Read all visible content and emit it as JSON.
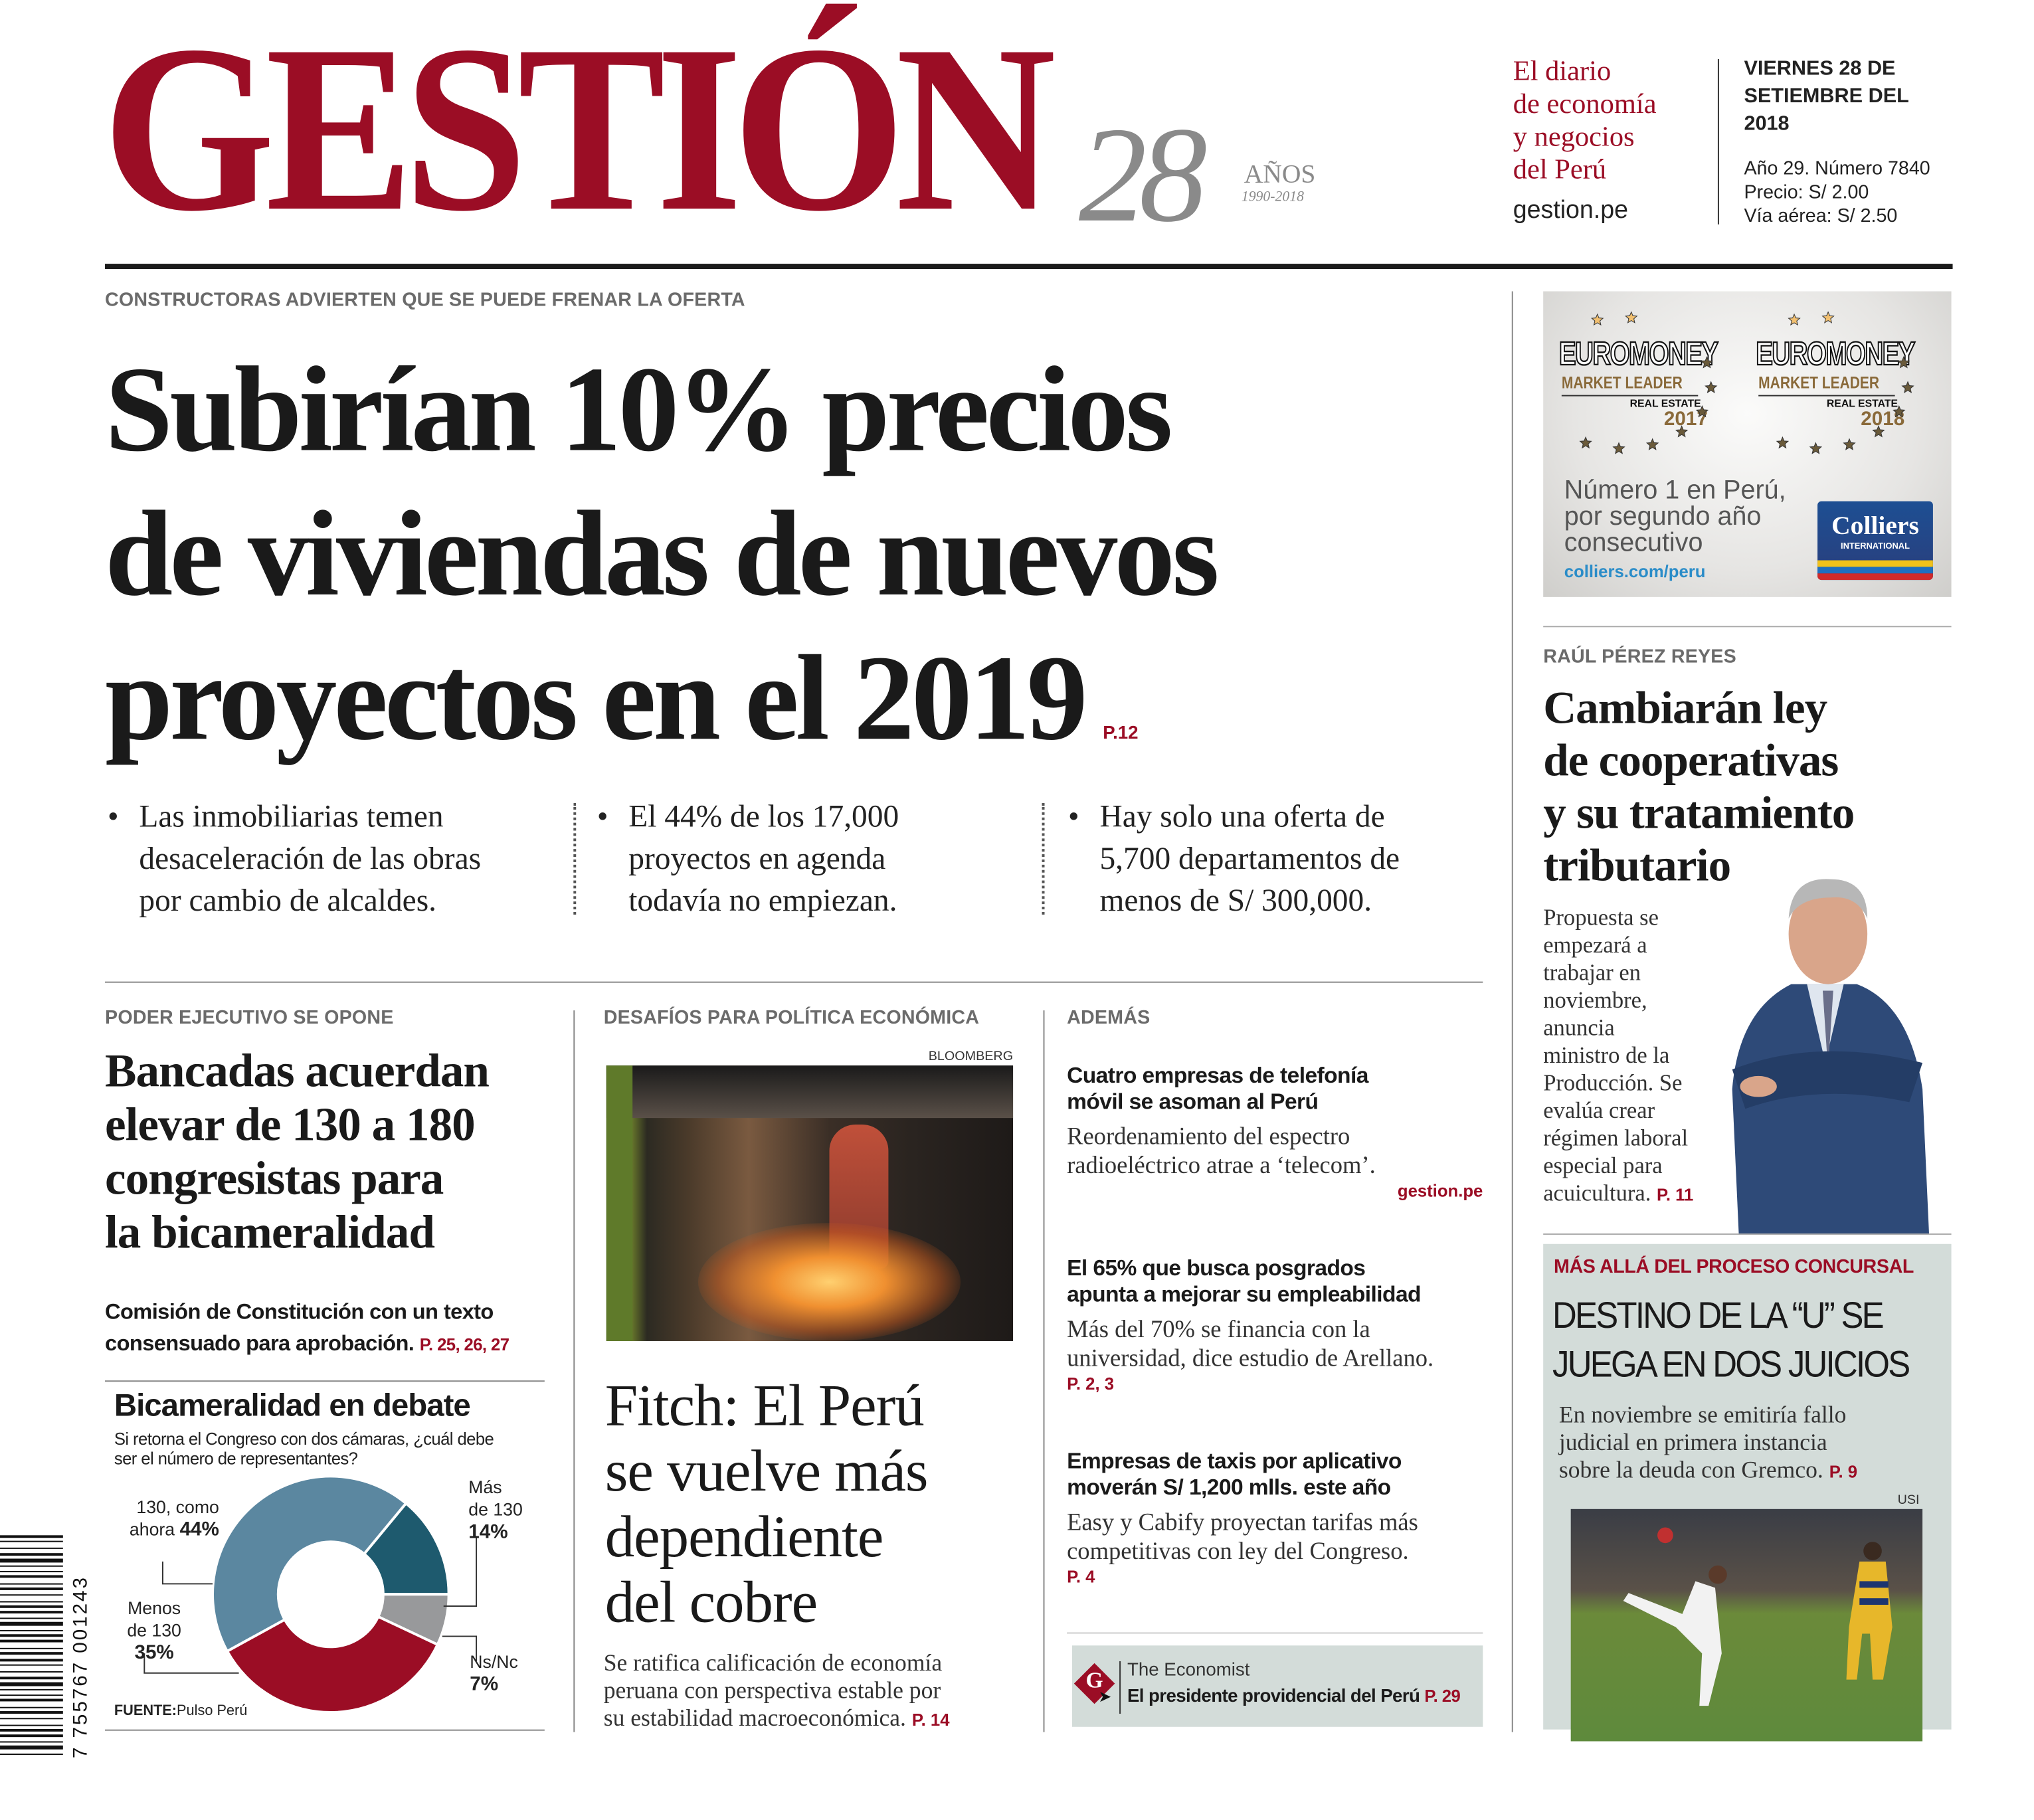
{
  "masthead": {
    "logo": "GESTIÓN",
    "anniversary_number": "28",
    "anniversary_word": "AÑOS",
    "anniversary_years": "1990-2018",
    "tagline": [
      "El diario",
      "de economía",
      "y negocios",
      "del Perú"
    ],
    "website": "gestion.pe",
    "date": [
      "VIERNES 28 DE",
      "SETIEMBRE DEL",
      "2018"
    ],
    "issue": "Año 29. Número 7840",
    "price": "Precio: S/ 2.00",
    "air_price": "Vía aérea: S/ 2.50",
    "brand_color": "#9b0d25"
  },
  "lead": {
    "kicker": "CONSTRUCTORAS ADVIERTEN QUE SE PUEDE FRENAR LA OFERTA",
    "headline": [
      "Subirían 10% precios",
      "de viviendas de nuevos",
      "proyectos en el 2019"
    ],
    "page_ref": "P.12",
    "bullets": [
      {
        "lines": [
          "Las inmobiliarias temen",
          "desaceleración de las obras",
          "por cambio de alcaldes."
        ]
      },
      {
        "lines": [
          "El 44% de los 17,000",
          "proyectos en agenda",
          "todavía no empiezan."
        ]
      },
      {
        "lines": [
          "Hay solo una oferta de",
          "5,700 departamentos de",
          "menos de S/ 300,000."
        ]
      }
    ],
    "bullet_glyph": "•"
  },
  "left_story": {
    "kicker": "PODER EJECUTIVO SE OPONE",
    "headline": [
      "Bancadas acuerdan",
      "elevar de 130 a 180",
      "congresistas para",
      "la bicameralidad"
    ],
    "subhead": [
      "Comisión de Constitución con un texto",
      "consensuado para aprobación."
    ],
    "page_ref": "P. 25, 26, 27"
  },
  "chart_data": {
    "type": "pie",
    "donut": true,
    "title": "Bicameralidad en debate",
    "subtitle": [
      "Si retorna el Congreso con dos cámaras, ¿cuál debe",
      "ser el número de representantes?"
    ],
    "source_label": "FUENTE:",
    "source": "Pulso Perú",
    "slices": [
      {
        "label": [
          "Más",
          "de 130"
        ],
        "value": 14,
        "value_label": "14%",
        "color": "#1e5a6e"
      },
      {
        "label": [
          "Ns/Nc"
        ],
        "value": 7,
        "value_label": "7%",
        "color": "#98999b"
      },
      {
        "label": [
          "Menos",
          "de 130"
        ],
        "value": 35,
        "value_label": "35%",
        "color": "#9b0d25"
      },
      {
        "label": [
          "130, como",
          "ahora"
        ],
        "value": 44,
        "value_label": "44%",
        "color": "#5b87a0"
      }
    ]
  },
  "middle_story": {
    "kicker": "DESAFÍOS PARA POLÍTICA ECONÓMICA",
    "photo_credit": "BLOOMBERG",
    "headline": [
      "Fitch: El Perú",
      "se vuelve más",
      "dependiente",
      "del cobre"
    ],
    "body": [
      "Se ratifica calificación de economía",
      "peruana con perspectiva estable por",
      "su estabilidad macroeconómica."
    ],
    "page_ref": "P. 14"
  },
  "ademas": {
    "kicker": "ADEMÁS",
    "items": [
      {
        "title": [
          "Cuatro empresas de telefonía",
          "móvil se asoman al Perú"
        ],
        "body": [
          "Reordenamiento del espectro",
          "radioeléctrico atrae a ‘telecom’."
        ],
        "ref": "gestion.pe"
      },
      {
        "title": [
          "El 65% que busca posgrados",
          "apunta a mejorar su empleabilidad"
        ],
        "body": [
          "Más del 70% se financia con la",
          "universidad, dice estudio de Arellano."
        ],
        "ref": "P. 2, 3"
      },
      {
        "title": [
          "Empresas de taxis por aplicativo",
          "moverán S/ 1,200 mlls. este año"
        ],
        "body": [
          "Easy y Cabify proyectan tarifas más",
          "competitivas con ley del Congreso."
        ],
        "ref": "P. 4"
      }
    ],
    "economist": {
      "source": "The Economist",
      "title": "El presidente providencial del Perú",
      "ref": "P. 29",
      "icon_letter": "G"
    }
  },
  "ad": {
    "award_brand": "EUROMONEY",
    "award_title": "MARKET LEADER",
    "award_category": "REAL ESTATE",
    "award_years": [
      "2017",
      "2018"
    ],
    "claim": [
      "Número 1 en Perú,",
      "por segundo año",
      "consecutivo"
    ],
    "url": "colliers.com/peru",
    "logo_name": "Colliers",
    "logo_sub": "INTERNATIONAL"
  },
  "right_story": {
    "kicker": "RAÚL PÉREZ REYES",
    "headline": [
      "Cambiarán ley",
      "de cooperativas",
      "y su tratamiento",
      "tributario"
    ],
    "body": [
      "Propuesta se",
      "empezará a",
      "trabajar en",
      "noviembre,",
      "anuncia",
      "ministro de la",
      "Producción. Se",
      "evalúa crear",
      "régimen laboral",
      "especial para",
      "acuicultura."
    ],
    "page_ref": "P. 11"
  },
  "box_story": {
    "kicker": "MÁS ALLÁ DEL PROCESO CONCURSAL",
    "headline": [
      "DESTINO DE LA “U” SE",
      "JUEGA EN DOS JUICIOS"
    ],
    "body": [
      "En noviembre se emitiría fallo",
      "judicial en primera instancia",
      "sobre la deuda con Gremco."
    ],
    "page_ref": "P. 9",
    "photo_credit": "USI"
  },
  "barcode": {
    "digits": "7 755767 001243"
  }
}
